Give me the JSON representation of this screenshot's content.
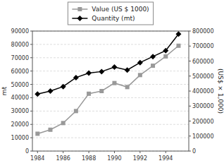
{
  "chart_data": {
    "type": "line",
    "x": [
      1984,
      1985,
      1986,
      1987,
      1988,
      1989,
      1990,
      1991,
      1992,
      1993,
      1994,
      1995
    ],
    "xlim": [
      1983.6,
      1995.8
    ],
    "xticks": [
      1984,
      1986,
      1988,
      1990,
      1992,
      1994
    ],
    "ylim": [
      0,
      90000
    ],
    "yticks": [
      0,
      10000,
      20000,
      30000,
      40000,
      50000,
      60000,
      70000,
      80000,
      90000
    ],
    "y2lim": [
      0,
      800000
    ],
    "y2ticks": [
      0,
      100000,
      200000,
      300000,
      400000,
      500000,
      600000,
      700000,
      800000
    ],
    "ylabel": "mt",
    "y2label": "(US$ × 1,000)",
    "grid": true,
    "legend": "top",
    "series": [
      {
        "name": "Value (US $ 1000)",
        "color": "#999999",
        "marker": "square",
        "values": [
          13000,
          16000,
          21000,
          30000,
          43000,
          45000,
          51000,
          48000,
          57000,
          64000,
          71000,
          79000
        ]
      },
      {
        "name": "Quantity (mt)",
        "color": "#000000",
        "marker": "diamond",
        "axis": "y2",
        "values": [
          380000,
          400000,
          430000,
          490000,
          520000,
          530000,
          560000,
          540000,
          590000,
          630000,
          670000,
          780000
        ]
      }
    ]
  }
}
